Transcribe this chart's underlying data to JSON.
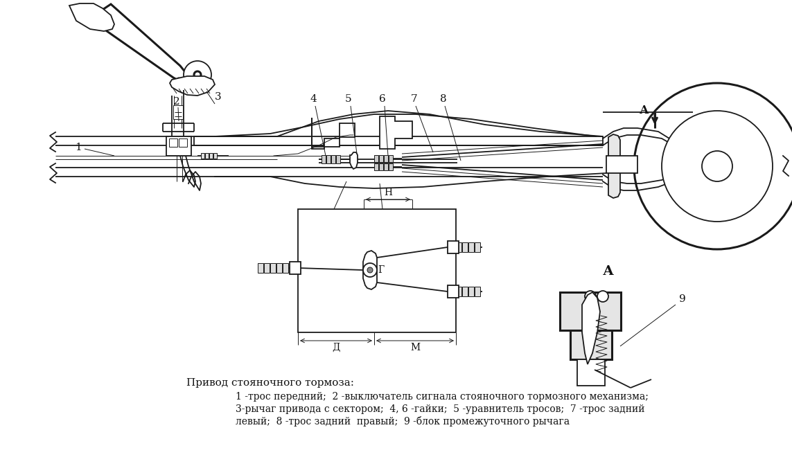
{
  "background_color": "#ffffff",
  "line_color": "#1a1a1a",
  "text_color": "#111111",
  "caption_title": "Привод стояночного тормоза:",
  "caption_line1": "1 -трос передний;  2 -выключатель сигнала стояночного тормозного механизма;",
  "caption_line2": "3-рычаг привода с сектором;  4, 6 -гайки;  5 -уравнитель тросов;  7 -трос задний",
  "caption_line3": "левый;  8 -трос задний  правый;  9 -блок промежуточного рычага",
  "fig_width": 11.43,
  "fig_height": 6.6,
  "dpi": 100,
  "lw_main": 1.3,
  "lw_thick": 2.2,
  "lw_thin": 0.7
}
